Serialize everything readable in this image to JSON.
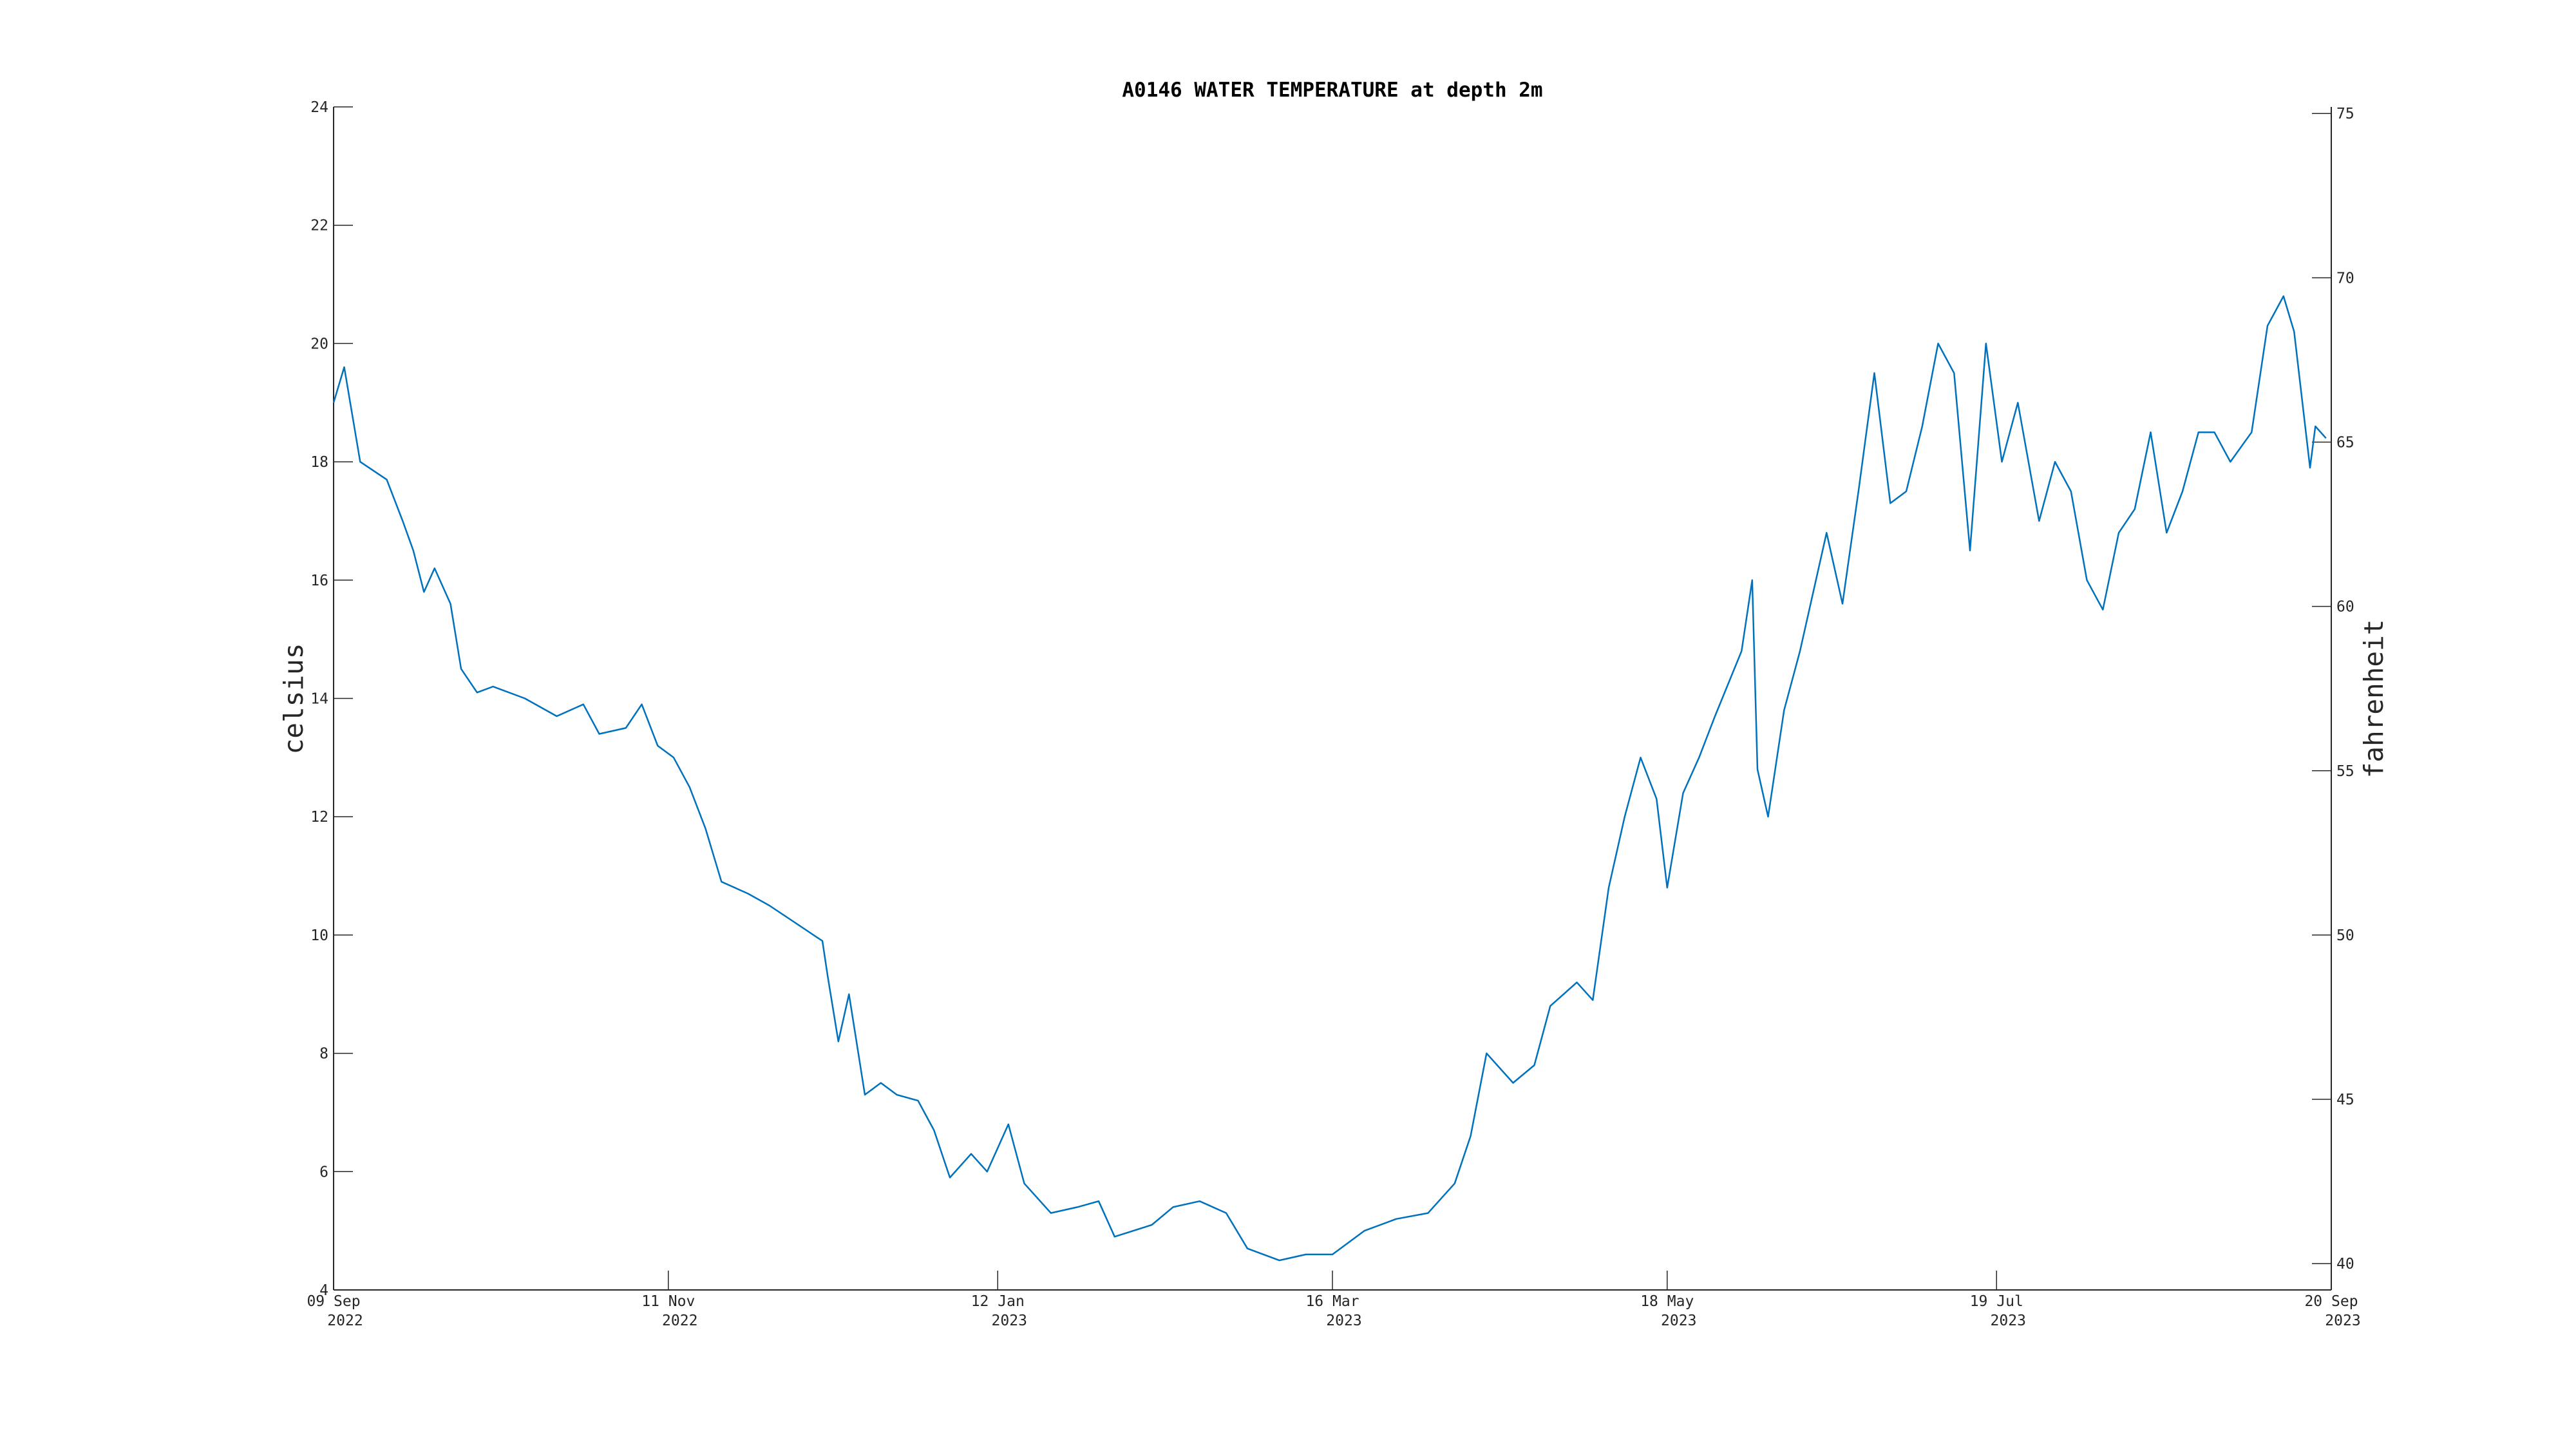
{
  "chart_data": {
    "type": "line",
    "title": "A0146 WATER TEMPERATURE at depth 2m",
    "ylabel": "celsius",
    "y2label": "fahrenheit",
    "xlim": [
      "2022-09-09",
      "2023-09-20"
    ],
    "xticks": [
      {
        "value": "2022-09-09",
        "label": [
          "09 Sep",
          "2022"
        ]
      },
      {
        "value": "2022-11-11",
        "label": [
          "11 Nov",
          "2022"
        ]
      },
      {
        "value": "2023-01-12",
        "label": [
          "12 Jan",
          "2023"
        ]
      },
      {
        "value": "2023-03-16",
        "label": [
          "16 Mar",
          "2023"
        ]
      },
      {
        "value": "2023-05-18",
        "label": [
          "18 May",
          "2023"
        ]
      },
      {
        "value": "2023-07-19",
        "label": [
          "19 Jul",
          "2023"
        ]
      },
      {
        "value": "2023-09-20",
        "label": [
          "20 Sep",
          "2023"
        ]
      }
    ],
    "ylim": [
      4,
      24
    ],
    "yticks": [
      4,
      6,
      8,
      10,
      12,
      14,
      16,
      18,
      20,
      22,
      24
    ],
    "y2lim": [
      39.2,
      75.2
    ],
    "y2ticks": [
      40,
      45,
      50,
      55,
      60,
      65,
      70,
      75
    ],
    "color": "#0072bd",
    "x": [
      "2022-09-09",
      "2022-09-11",
      "2022-09-14",
      "2022-09-19",
      "2022-09-22",
      "2022-09-24",
      "2022-09-26",
      "2022-09-28",
      "2022-10-01",
      "2022-10-03",
      "2022-10-06",
      "2022-10-09",
      "2022-10-15",
      "2022-10-21",
      "2022-10-26",
      "2022-10-29",
      "2022-11-03",
      "2022-11-06",
      "2022-11-09",
      "2022-11-12",
      "2022-11-15",
      "2022-11-18",
      "2022-11-21",
      "2022-11-26",
      "2022-11-30",
      "2022-12-05",
      "2022-12-10",
      "2022-12-11",
      "2022-12-13",
      "2022-12-15",
      "2022-12-18",
      "2022-12-21",
      "2022-12-24",
      "2022-12-28",
      "2022-12-31",
      "2023-01-03",
      "2023-01-07",
      "2023-01-10",
      "2023-01-14",
      "2023-01-17",
      "2023-01-22",
      "2023-01-27",
      "2023-01-31",
      "2023-02-03",
      "2023-02-10",
      "2023-02-14",
      "2023-02-19",
      "2023-02-24",
      "2023-02-28",
      "2023-03-06",
      "2023-03-11",
      "2023-03-16",
      "2023-03-22",
      "2023-03-28",
      "2023-04-03",
      "2023-04-08",
      "2023-04-11",
      "2023-04-14",
      "2023-04-19",
      "2023-04-23",
      "2023-04-26",
      "2023-05-01",
      "2023-05-04",
      "2023-05-07",
      "2023-05-10",
      "2023-05-13",
      "2023-05-16",
      "2023-05-18",
      "2023-05-21",
      "2023-05-24",
      "2023-05-27",
      "2023-06-01",
      "2023-06-03",
      "2023-06-04",
      "2023-06-06",
      "2023-06-09",
      "2023-06-12",
      "2023-06-17",
      "2023-06-20",
      "2023-06-23",
      "2023-06-26",
      "2023-06-29",
      "2023-07-02",
      "2023-07-05",
      "2023-07-08",
      "2023-07-11",
      "2023-07-14",
      "2023-07-17",
      "2023-07-20",
      "2023-07-23",
      "2023-07-27",
      "2023-07-30",
      "2023-08-02",
      "2023-08-05",
      "2023-08-08",
      "2023-08-11",
      "2023-08-14",
      "2023-08-17",
      "2023-08-20",
      "2023-08-23",
      "2023-08-26",
      "2023-08-29",
      "2023-09-01",
      "2023-09-05",
      "2023-09-08",
      "2023-09-11",
      "2023-09-13",
      "2023-09-16",
      "2023-09-17",
      "2023-09-19"
    ],
    "values": [
      19.0,
      19.6,
      18.0,
      17.7,
      17.0,
      16.5,
      15.8,
      16.2,
      15.6,
      14.5,
      14.1,
      14.2,
      14.0,
      13.7,
      13.9,
      13.4,
      13.5,
      13.9,
      13.2,
      13.0,
      12.5,
      11.8,
      10.9,
      10.7,
      10.5,
      10.2,
      9.9,
      9.3,
      8.2,
      9.0,
      7.3,
      7.5,
      7.3,
      7.2,
      6.7,
      5.9,
      6.3,
      6.0,
      6.8,
      5.8,
      5.3,
      5.4,
      5.5,
      4.9,
      5.1,
      5.4,
      5.5,
      5.3,
      4.7,
      4.5,
      4.6,
      4.6,
      5.0,
      5.2,
      5.3,
      5.8,
      6.6,
      8.0,
      7.5,
      7.8,
      8.8,
      9.2,
      8.9,
      10.8,
      12.0,
      13.0,
      12.3,
      10.8,
      12.4,
      13.0,
      13.7,
      14.8,
      16.0,
      12.8,
      12.0,
      13.8,
      14.8,
      16.8,
      15.6,
      17.5,
      19.5,
      17.3,
      17.5,
      18.6,
      20.0,
      19.5,
      16.5,
      20.0,
      18.0,
      19.0,
      17.0,
      18.0,
      17.5,
      16.0,
      15.5,
      16.8,
      17.2,
      18.5,
      16.8,
      17.5,
      18.5,
      18.5,
      18.0,
      18.5,
      20.3,
      20.8,
      20.2,
      17.9,
      18.6,
      18.4
    ]
  }
}
